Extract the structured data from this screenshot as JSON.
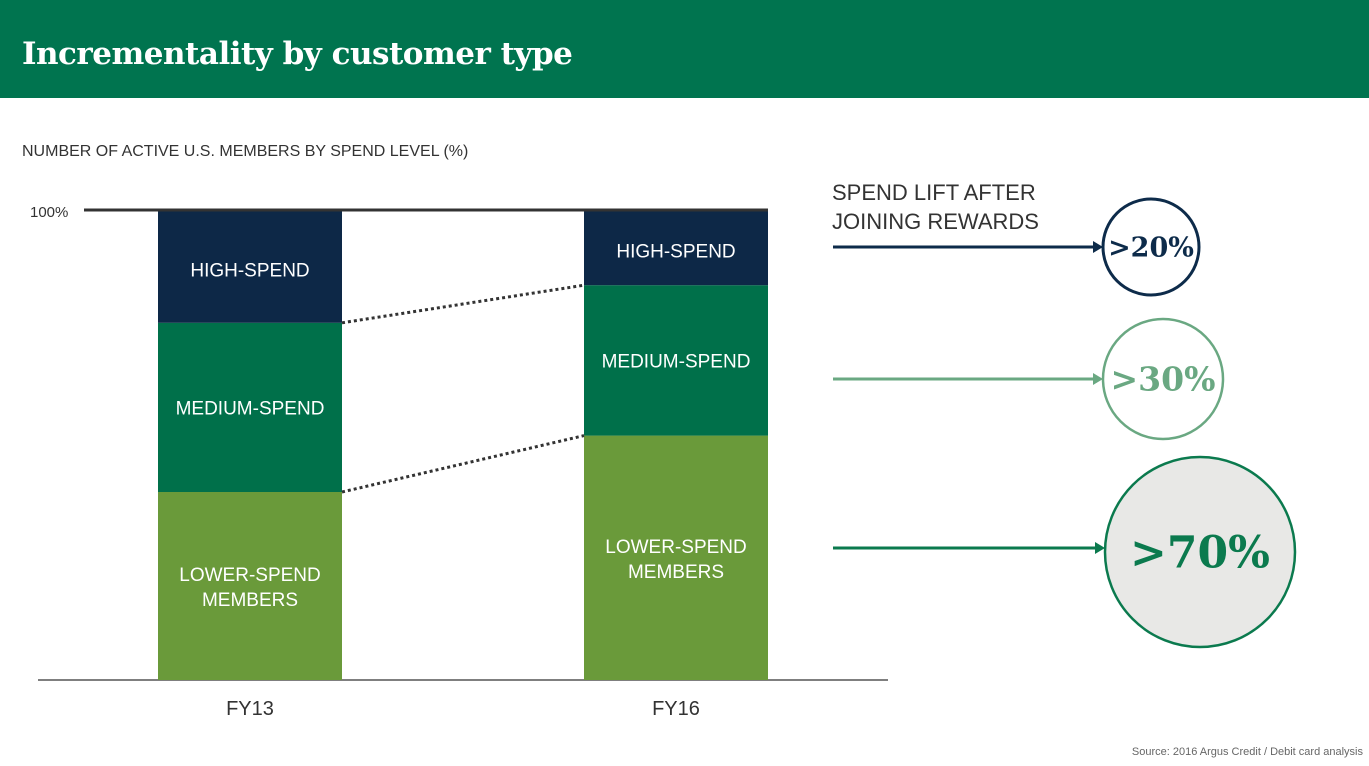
{
  "header": {
    "title": "Incrementality by customer type"
  },
  "side": {
    "heading_line1": "SPEND LIFT AFTER",
    "heading_line2": "JOINING REWARDS"
  },
  "source": "Source: 2016 Argus Credit / Debit card analysis",
  "colors": {
    "header": "#00744f",
    "high": "#0d2847",
    "medium": "#00704a",
    "lower": "#6a9a3a",
    "lift_high": "#0d2b4a",
    "lift_medium": "#6aa882",
    "lift_lower": "#0b7a4e"
  },
  "chart_data": {
    "type": "bar",
    "stacked": true,
    "title": "NUMBER OF ACTIVE U.S. MEMBERS BY SPEND LEVEL (%)",
    "categories": [
      "FY13",
      "FY16"
    ],
    "ylim": [
      0,
      100
    ],
    "ytick_label": "100%",
    "series": [
      {
        "name": "LOWER-SPEND MEMBERS",
        "key": "lower",
        "values": [
          40,
          52
        ]
      },
      {
        "name": "MEDIUM-SPEND",
        "key": "medium",
        "values": [
          36,
          32
        ]
      },
      {
        "name": "HIGH-SPEND",
        "key": "high",
        "values": [
          24,
          16
        ]
      }
    ],
    "lift": [
      {
        "segment": "HIGH-SPEND",
        "key": "high",
        "label": ">20%"
      },
      {
        "segment": "MEDIUM-SPEND",
        "key": "medium",
        "label": ">30%"
      },
      {
        "segment": "LOWER-SPEND MEMBERS",
        "key": "lower",
        "label": ">70%"
      }
    ]
  }
}
